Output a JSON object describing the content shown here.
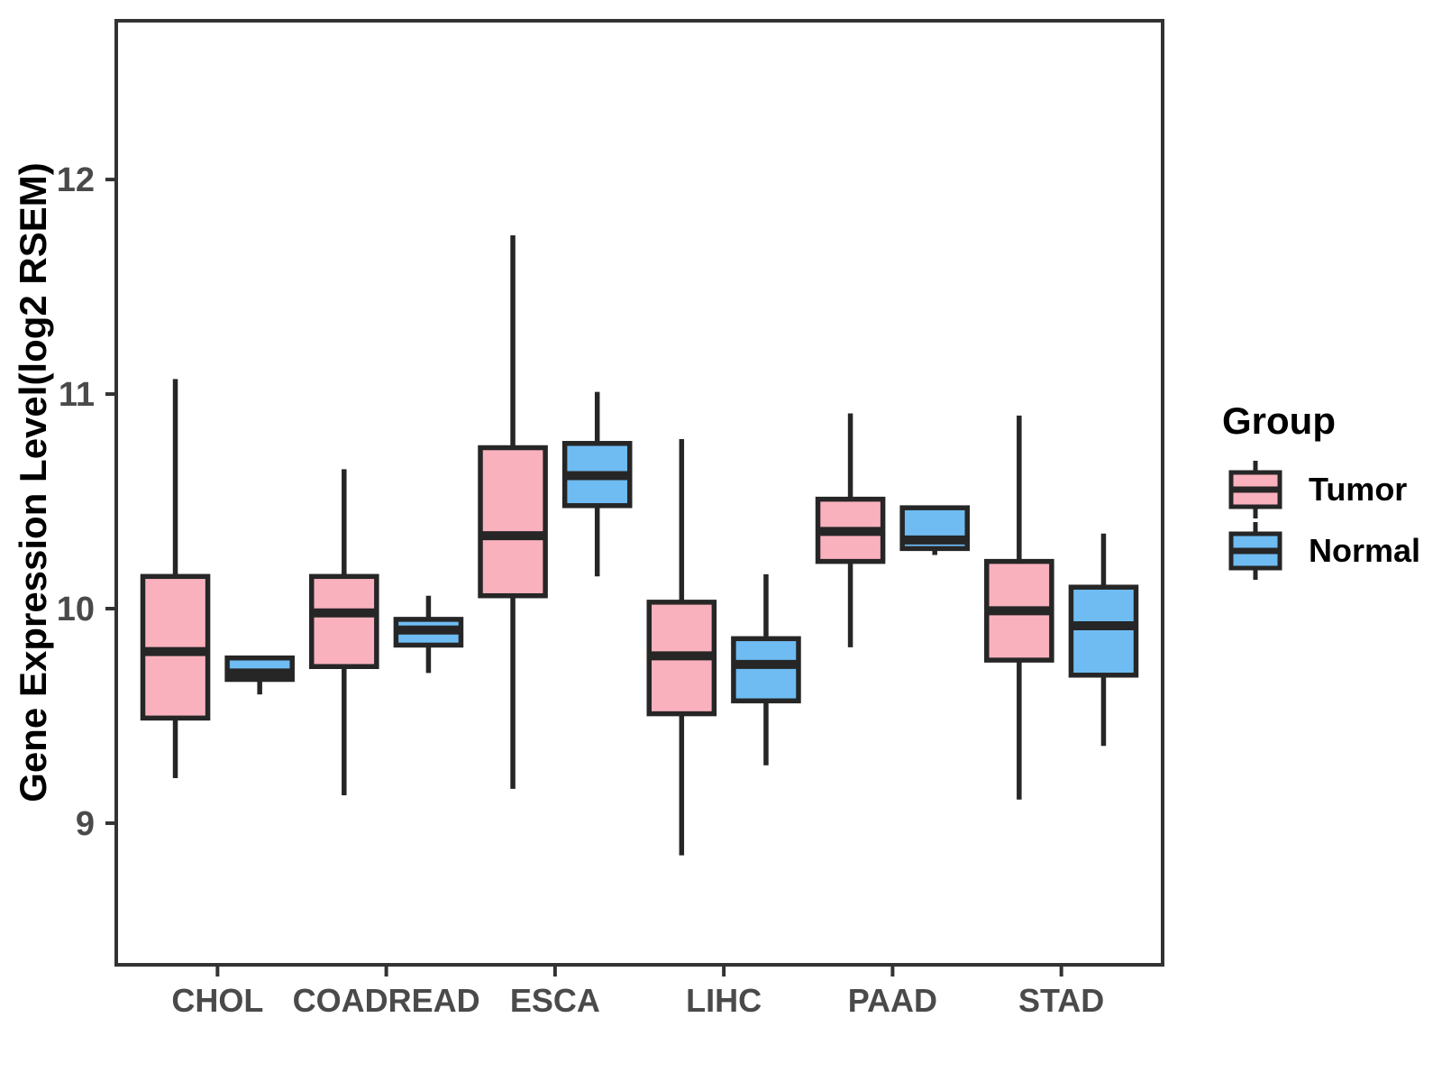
{
  "chart_data": {
    "type": "boxplot",
    "title": "",
    "xlabel": "",
    "ylabel": "Gene Expression Level(log2 RSEM)",
    "ylim": [
      8.34,
      12.74
    ],
    "yticks": [
      9,
      10,
      11,
      12
    ],
    "categories": [
      "CHOL",
      "COADREAD",
      "ESCA",
      "LIHC",
      "PAAD",
      "STAD"
    ],
    "grid": "off",
    "legend_position": "right",
    "legend": {
      "title": "Group",
      "entries": [
        {
          "label": "Tumor",
          "color": "#FAB1BE"
        },
        {
          "label": "Normal",
          "color": "#6FBCF2"
        }
      ]
    },
    "series": [
      {
        "name": "Tumor",
        "color": "#FAB1BE",
        "boxes": [
          {
            "category": "CHOL",
            "low": 9.21,
            "q1": 9.49,
            "median": 9.8,
            "q3": 10.15,
            "high": 11.07
          },
          {
            "category": "COADREAD",
            "low": 9.13,
            "q1": 9.73,
            "median": 9.98,
            "q3": 10.15,
            "high": 10.65
          },
          {
            "category": "ESCA",
            "low": 9.16,
            "q1": 10.06,
            "median": 10.34,
            "q3": 10.75,
            "high": 11.74
          },
          {
            "category": "LIHC",
            "low": 8.85,
            "q1": 9.51,
            "median": 9.78,
            "q3": 10.03,
            "high": 10.79
          },
          {
            "category": "PAAD",
            "low": 9.82,
            "q1": 10.22,
            "median": 10.36,
            "q3": 10.51,
            "high": 10.91
          },
          {
            "category": "STAD",
            "low": 9.11,
            "q1": 9.76,
            "median": 9.99,
            "q3": 10.22,
            "high": 10.9
          }
        ]
      },
      {
        "name": "Normal",
        "color": "#6FBCF2",
        "boxes": [
          {
            "category": "CHOL",
            "low": 9.6,
            "q1": 9.67,
            "median": 9.7,
            "q3": 9.77,
            "high": 9.77
          },
          {
            "category": "COADREAD",
            "low": 9.7,
            "q1": 9.83,
            "median": 9.9,
            "q3": 9.95,
            "high": 10.06
          },
          {
            "category": "ESCA",
            "low": 10.15,
            "q1": 10.48,
            "median": 10.62,
            "q3": 10.77,
            "high": 11.01
          },
          {
            "category": "LIHC",
            "low": 9.27,
            "q1": 9.57,
            "median": 9.74,
            "q3": 9.86,
            "high": 10.16
          },
          {
            "category": "PAAD",
            "low": 10.25,
            "q1": 10.28,
            "median": 10.32,
            "q3": 10.47,
            "high": 10.47
          },
          {
            "category": "STAD",
            "low": 9.36,
            "q1": 9.69,
            "median": 9.92,
            "q3": 10.1,
            "high": 10.35
          }
        ]
      }
    ],
    "style": {
      "line_color": "#262626",
      "panel_border_color": "#333333",
      "axis_text_color": "#4A4A4A",
      "axis_title_color": "#000000"
    }
  }
}
